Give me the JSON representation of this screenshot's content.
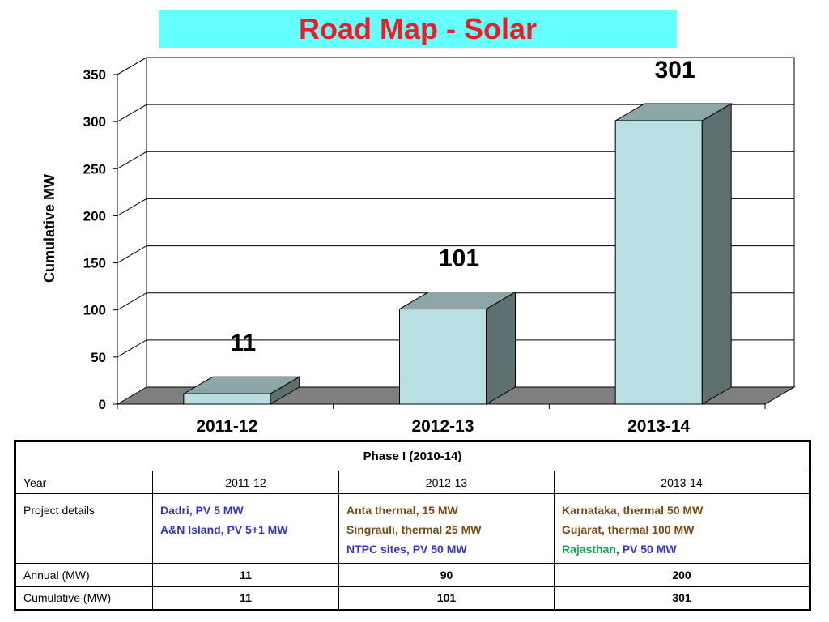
{
  "title": "Road Map - Solar",
  "colors": {
    "title_bg": "#66ffff",
    "title_text": "#ee1c25",
    "bar_front": "#b8dfe2",
    "bar_top": "#8da7a9",
    "bar_side": "#5e6f70",
    "floor": "#7f7f7f",
    "detail_blue": "#3333cc",
    "detail_brown": "#7a4a10",
    "detail_green": "#1aa050"
  },
  "chart_data": {
    "type": "bar",
    "categories": [
      "2011-12",
      "2012-13",
      "2013-14"
    ],
    "values": [
      11,
      101,
      301
    ],
    "data_labels": [
      "11",
      "101",
      "301"
    ],
    "ylabel": "Cumulative MW",
    "xlabel": "",
    "ylim": [
      0,
      350
    ],
    "yticks": [
      "0",
      "50",
      "100",
      "150",
      "200",
      "250",
      "300",
      "350"
    ],
    "grid": true,
    "style": "3d"
  },
  "table": {
    "phase_header": "Phase I (2010-14)",
    "year_label": "Year",
    "years": [
      "2011-12",
      "2012-13",
      "2013-14"
    ],
    "details_label": "Project details",
    "details": {
      "col1_line1": "Dadri, PV 5 MW",
      "col1_line2": "A&N Island, PV 5+1 MW",
      "col2_line1": "Anta thermal, 15 MW",
      "col2_line2": "Singrauli, thermal 25 MW",
      "col2_line3": "NTPC sites, PV 50 MW",
      "col3_line1": "Karnataka, thermal 50 MW",
      "col3_line2": "Gujarat, thermal 100 MW",
      "col3_line3_a": "Rajasthan",
      "col3_line3_b": ", PV 50 MW"
    },
    "annual_label": "Annual (MW)",
    "annual": [
      "11",
      "90",
      "200"
    ],
    "cumulative_label": "Cumulative (MW)",
    "cumulative": [
      "11",
      "101",
      "301"
    ]
  }
}
